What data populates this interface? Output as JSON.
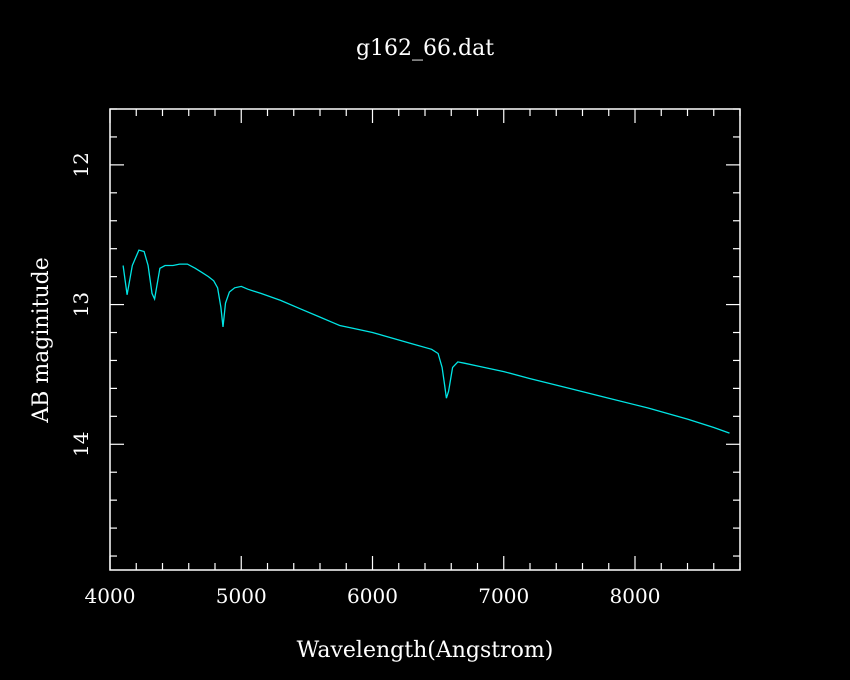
{
  "chart_data": {
    "type": "line",
    "title": "g162_66.dat",
    "xlabel": "Wavelength(Angstrom)",
    "ylabel": "AB maginitude",
    "xlim": [
      4000,
      8800
    ],
    "ylim": [
      14.9,
      11.6
    ],
    "y_inverted": true,
    "x_major_ticks": [
      4000,
      5000,
      6000,
      7000,
      8000
    ],
    "x_tick_labels": [
      "4000",
      "5000",
      "6000",
      "7000",
      "8000"
    ],
    "y_major_ticks": [
      12,
      13,
      14
    ],
    "y_tick_labels": [
      "12",
      "13",
      "14"
    ],
    "x_minor_step": 200,
    "y_minor_step": 0.2,
    "grid": false,
    "background": "#000000",
    "frame_color": "#ffffff",
    "series": [
      {
        "color": "#00e5e5",
        "x": [
          4100,
          4130,
          4170,
          4220,
          4260,
          4290,
          4320,
          4340,
          4380,
          4420,
          4480,
          4530,
          4590,
          4650,
          4700,
          4750,
          4790,
          4820,
          4845,
          4861,
          4880,
          4910,
          4950,
          5000,
          5050,
          5150,
          5300,
          5450,
          5600,
          5700,
          5750,
          5850,
          6000,
          6150,
          6300,
          6450,
          6500,
          6530,
          6550,
          6563,
          6580,
          6610,
          6650,
          6700,
          6800,
          7000,
          7200,
          7500,
          7800,
          8100,
          8400,
          8600,
          8720
        ],
        "y": [
          12.72,
          12.93,
          12.72,
          12.61,
          12.62,
          12.72,
          12.92,
          12.96,
          12.74,
          12.72,
          12.72,
          12.71,
          12.71,
          12.74,
          12.77,
          12.8,
          12.83,
          12.88,
          13.02,
          13.16,
          12.99,
          12.91,
          12.88,
          12.87,
          12.89,
          12.92,
          12.97,
          13.03,
          13.09,
          13.13,
          13.15,
          13.17,
          13.2,
          13.24,
          13.28,
          13.32,
          13.35,
          13.45,
          13.58,
          13.67,
          13.62,
          13.45,
          13.41,
          13.42,
          13.44,
          13.48,
          13.53,
          13.6,
          13.67,
          13.74,
          13.82,
          13.88,
          13.92
        ]
      }
    ]
  }
}
